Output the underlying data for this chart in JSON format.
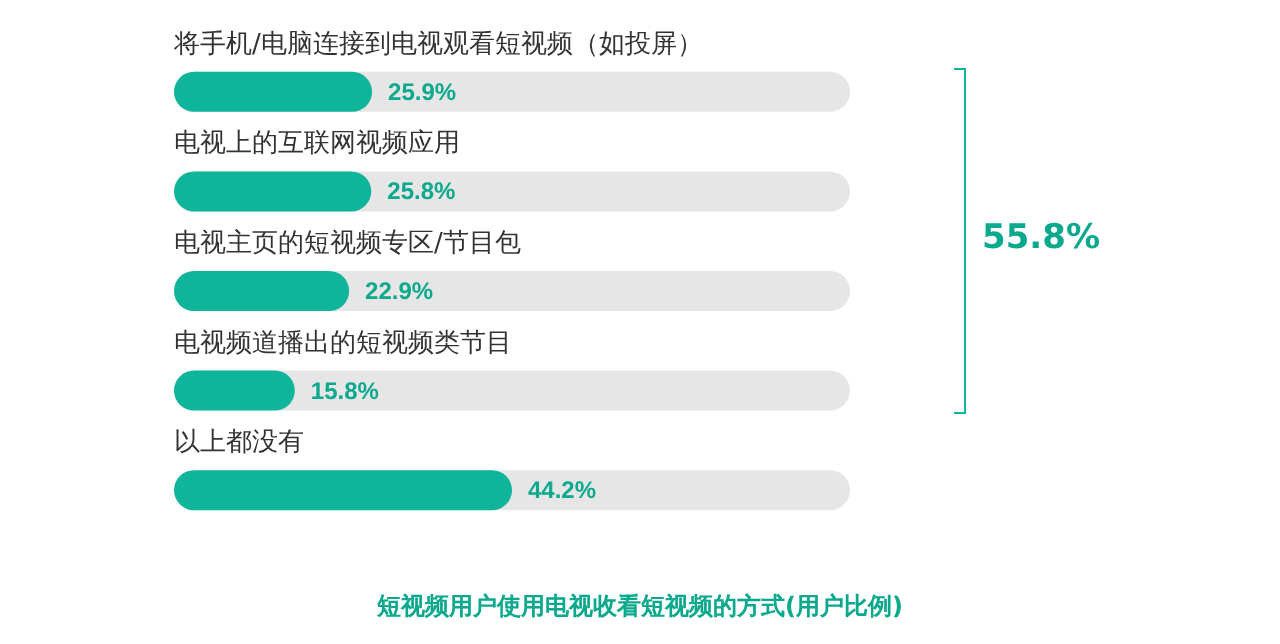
{
  "chart_data": {
    "type": "bar",
    "orientation": "horizontal",
    "title": "短视频用户使用电视收看短视频的方式(用户比例)",
    "categories": [
      "将手机/电脑连接到电视观看短视频（如投屏）",
      "电视上的互联网视频应用",
      "电视主页的短视频专区/节目包",
      "电视频道播出的短视频类节目",
      "以上都没有"
    ],
    "values": [
      25.9,
      25.8,
      22.9,
      15.8,
      44.2
    ],
    "color": "#0fb59a",
    "value_labels": [
      "25.9%",
      "25.8%",
      "22.9%",
      "15.8%",
      "44.2%"
    ],
    "annotations": [
      "55.8%"
    ]
  }
}
